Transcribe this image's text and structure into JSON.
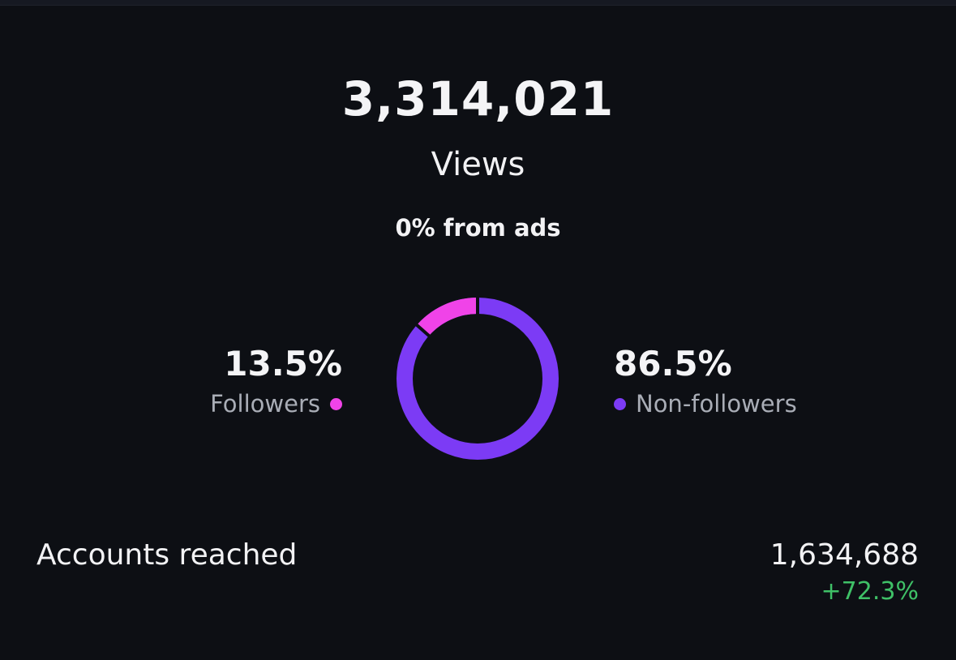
{
  "views": {
    "count": "3,314,021",
    "label": "Views",
    "ads_text": "0% from ads"
  },
  "breakdown": {
    "followers": {
      "percent_text": "13.5%",
      "label": "Followers",
      "percent": 13.5,
      "color": "#f043e8"
    },
    "non_followers": {
      "percent_text": "86.5%",
      "label": "Non-followers",
      "percent": 86.5,
      "color": "#7c3bf5"
    }
  },
  "accounts_reached": {
    "label": "Accounts reached",
    "value": "1,634,688",
    "change": "+72.3%",
    "change_color": "#3fc167"
  },
  "colors": {
    "background": "#0d0f14"
  }
}
